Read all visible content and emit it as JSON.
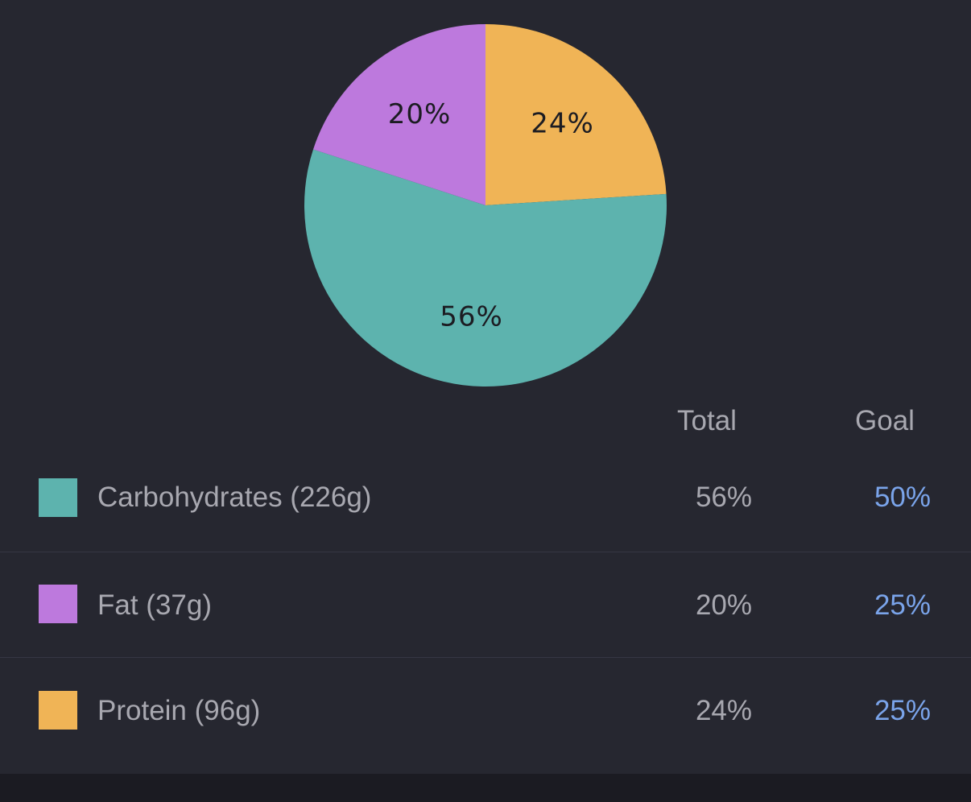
{
  "chart_data": {
    "type": "pie",
    "slices": [
      {
        "name": "Protein",
        "value": 24,
        "label": "24%",
        "color": "#f0b456"
      },
      {
        "name": "Carbohydrates",
        "value": 56,
        "label": "56%",
        "color": "#5db3ae"
      },
      {
        "name": "Fat",
        "value": 20,
        "label": "20%",
        "color": "#bd79dd"
      }
    ]
  },
  "table": {
    "header": {
      "total": "Total",
      "goal": "Goal"
    },
    "rows": [
      {
        "label": "Carbohydrates (226g)",
        "total": "56%",
        "goal": "50%",
        "color": "#5db3ae"
      },
      {
        "label": "Fat (37g)",
        "total": "20%",
        "goal": "25%",
        "color": "#bd79dd"
      },
      {
        "label": "Protein (96g)",
        "total": "24%",
        "goal": "25%",
        "color": "#f0b456"
      }
    ]
  }
}
